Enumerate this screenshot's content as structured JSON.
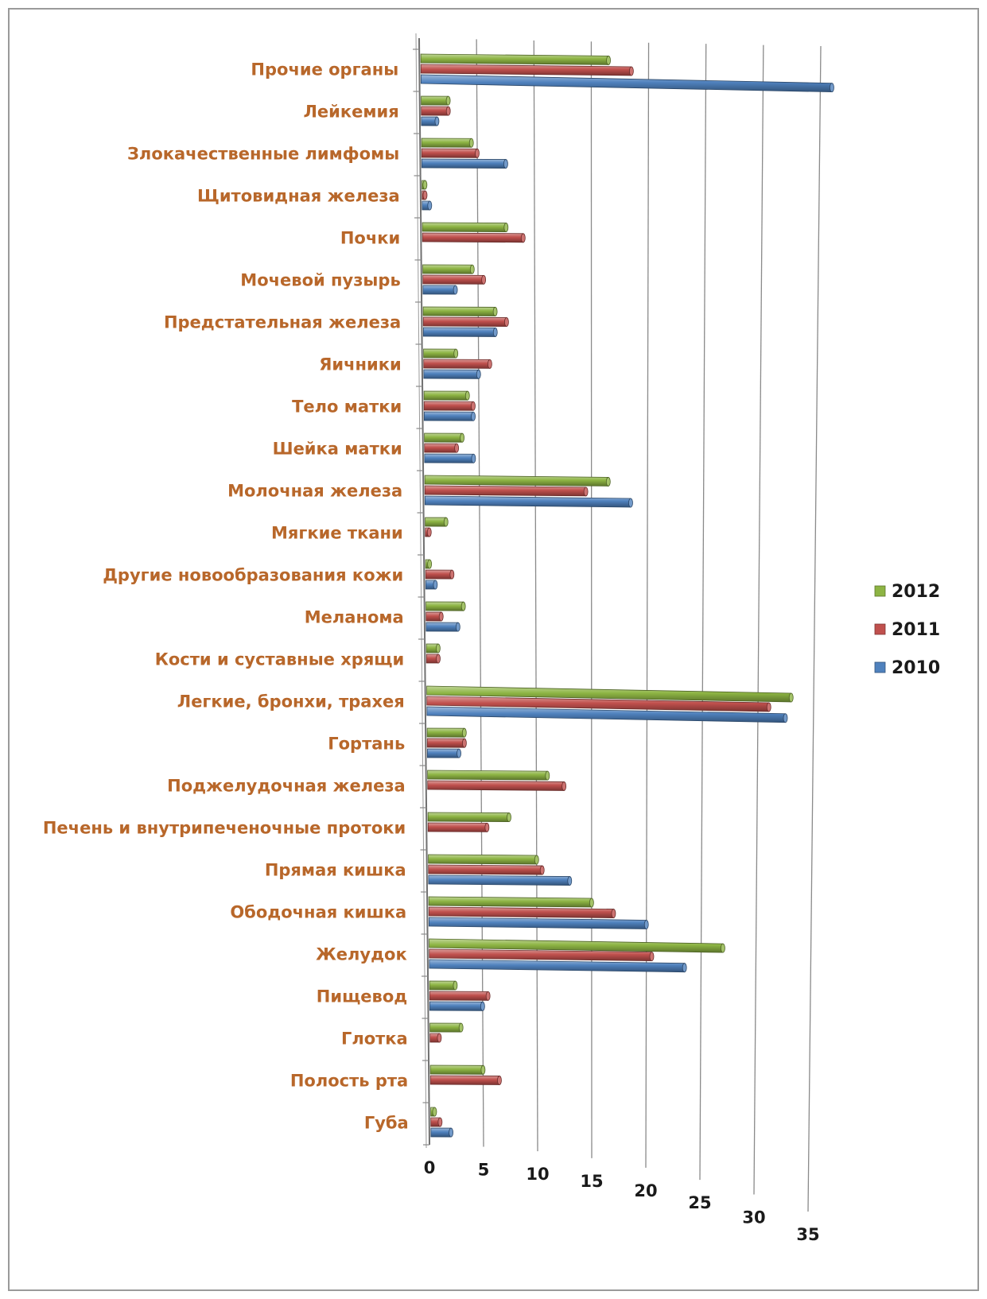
{
  "chart_data": {
    "type": "bar",
    "orientation": "horizontal",
    "perspective": "3d",
    "categories": [
      "Прочие органы",
      "Лейкемия",
      "Злокачественные лимфомы",
      "Щитовидная железа",
      "Почки",
      "Мочевой пузырь",
      "Предстательная железа",
      "Яичники",
      "Тело матки",
      "Шейка матки",
      "Молочная железа",
      "Мягкие ткани",
      "Другие новообразования кожи",
      "Меланома",
      "Кости и суставные хрящи",
      "Легкие, бронхи, трахея",
      "Гортань",
      "Поджелудочная железа",
      "Печень и внутрипеченочные протоки",
      "Прямая кишка",
      "Ободочная кишка",
      "Желудок",
      "Пищевод",
      "Глотка",
      "Полость рта",
      "Губа"
    ],
    "series": [
      {
        "name": "2012",
        "color": "#8db443",
        "values": [
          16.5,
          2.5,
          4.5,
          0.4,
          7.5,
          4.5,
          6.5,
          3.0,
          4.0,
          3.5,
          16.5,
          2.0,
          0.5,
          3.5,
          1.2,
          33.0,
          3.5,
          11.0,
          7.5,
          10.0,
          15.0,
          27.0,
          2.5,
          3.0,
          5.0,
          0.5
        ]
      },
      {
        "name": "2011",
        "color": "#c0504d",
        "values": [
          18.5,
          2.5,
          5.0,
          0.4,
          9.0,
          5.5,
          7.5,
          6.0,
          4.5,
          3.0,
          14.5,
          0.5,
          2.5,
          1.5,
          1.2,
          31.0,
          3.5,
          12.5,
          5.5,
          10.5,
          17.0,
          20.5,
          5.5,
          1.0,
          6.5,
          1.0
        ]
      },
      {
        "name": "2010",
        "color": "#4f81bd",
        "values": [
          36.0,
          1.5,
          7.5,
          0.8,
          0.0,
          3.0,
          6.5,
          5.0,
          4.5,
          4.5,
          18.5,
          0.0,
          1.0,
          3.0,
          0.0,
          32.5,
          3.0,
          0.0,
          0.0,
          13.0,
          20.0,
          23.5,
          5.0,
          0.0,
          0.0,
          2.0
        ]
      }
    ],
    "legend_order": [
      "2012",
      "2011",
      "2010"
    ],
    "xlim": [
      0,
      35
    ],
    "xticks": [
      0,
      5,
      10,
      15,
      20,
      25,
      30,
      35
    ],
    "grid": true,
    "legend_position": "right",
    "title": "",
    "xlabel": "",
    "ylabel": ""
  }
}
